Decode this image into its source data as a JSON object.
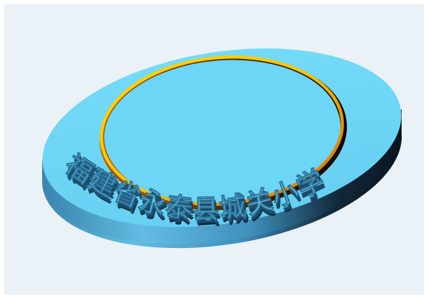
{
  "seal": {
    "text": "福建省永泰县城关小学",
    "colors": {
      "background": "#ebf2f7",
      "face": "#6fd6f7",
      "edge_light": "#58b6de",
      "edge_dark": "#0d1c29",
      "ring_gold": "#f7d21f",
      "ring_orange": "#e27a0a",
      "ring_inner_shadow": "#1a0e02"
    }
  }
}
